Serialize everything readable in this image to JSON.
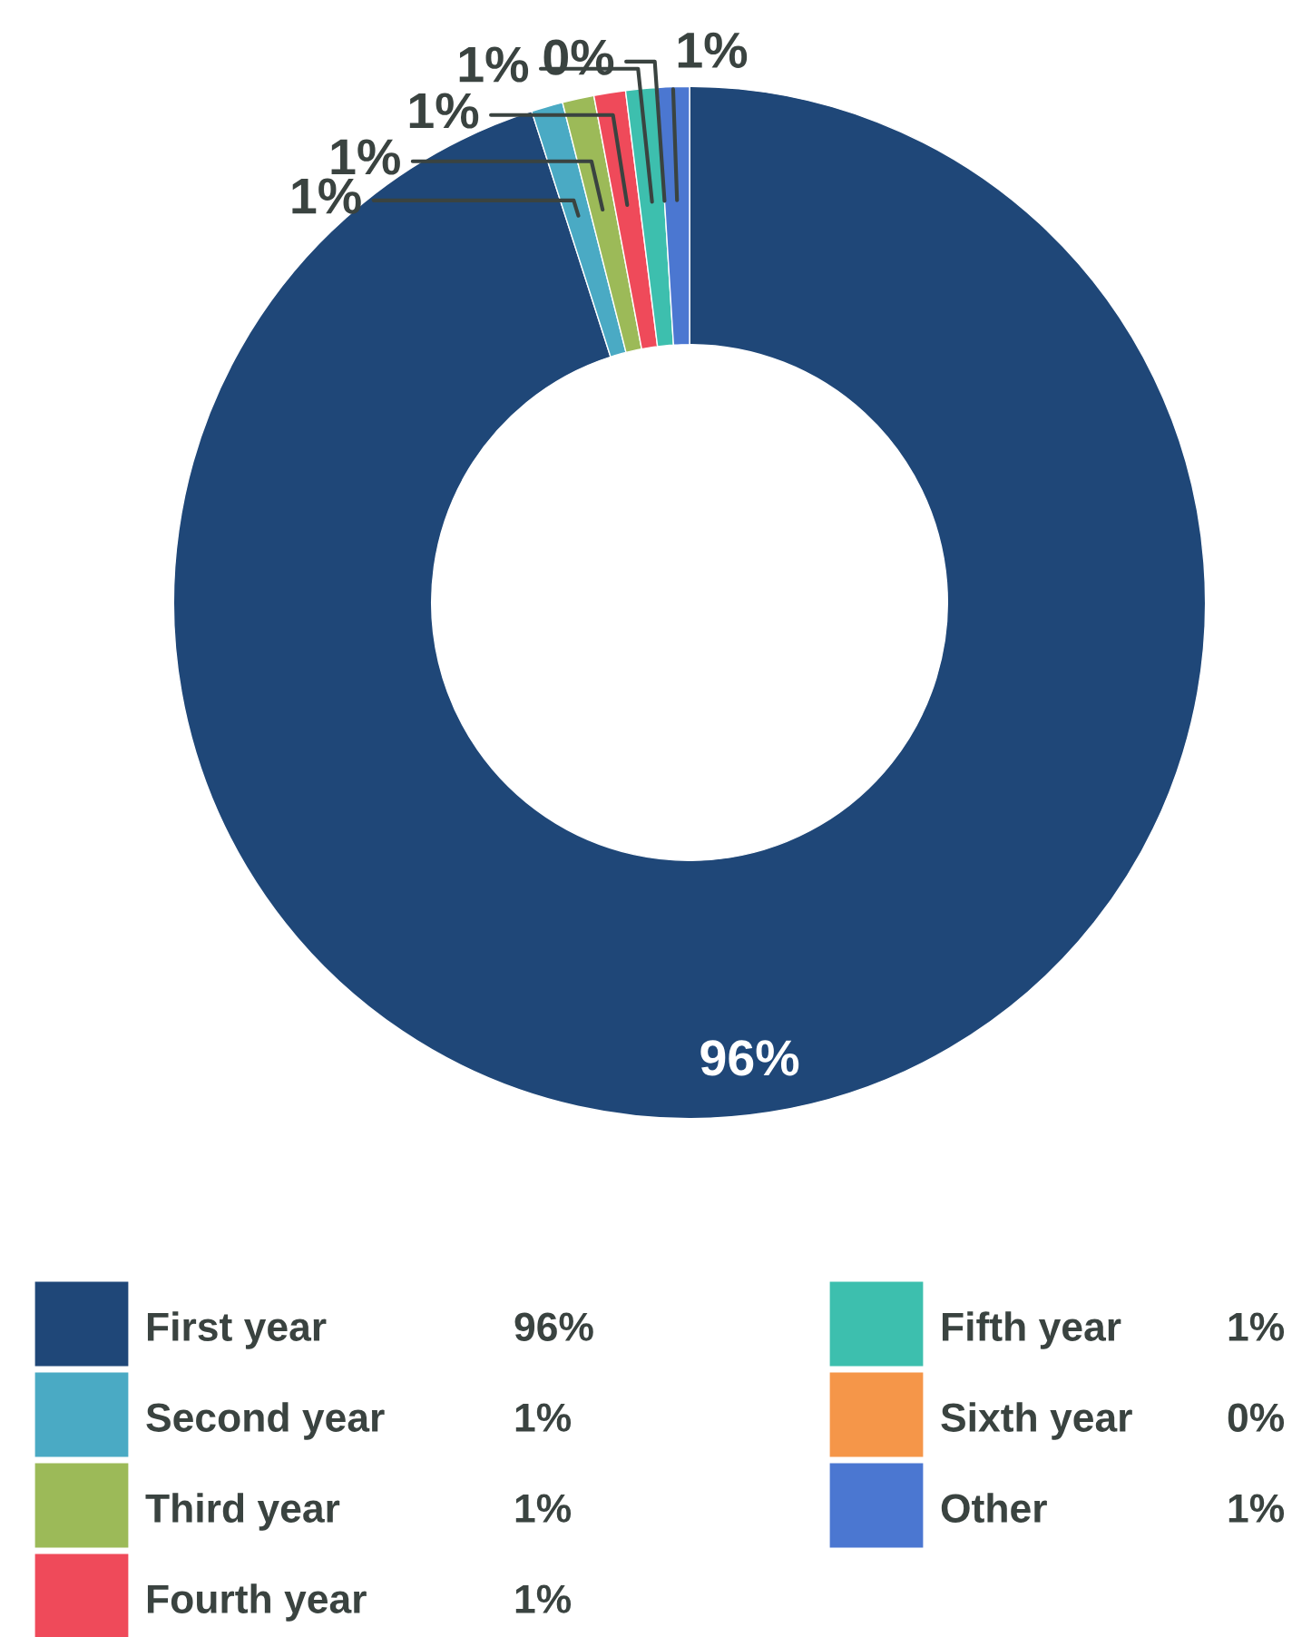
{
  "chart_data": {
    "type": "donut",
    "categories": [
      "First year",
      "Second year",
      "Third year",
      "Fourth year",
      "Fifth year",
      "Sixth year",
      "Other"
    ],
    "values": [
      96,
      1,
      1,
      1,
      1,
      0,
      1
    ],
    "colors": [
      "#1f4778",
      "#4aaac4",
      "#9cba58",
      "#ef4a5a",
      "#3dbfae",
      "#f59649",
      "#4b77d1"
    ],
    "data_labels": true,
    "value_labels": [
      "96%",
      "1%",
      "1%",
      "1%",
      "1%",
      "0%",
      "1%"
    ],
    "legend": "bottom"
  }
}
